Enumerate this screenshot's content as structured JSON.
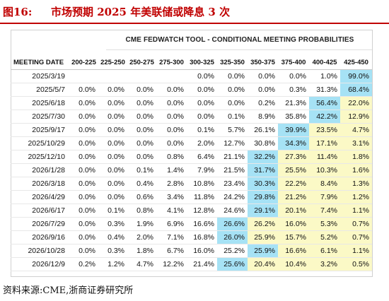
{
  "caption": {
    "number": "图16:",
    "title": "市场预期 2025 年美联储或降息 3 次"
  },
  "tool_title": "CME FEDWATCH TOOL - CONDITIONAL MEETING PROBABILITIES",
  "table": {
    "date_header": "MEETING DATE",
    "columns": [
      "200-225",
      "225-250",
      "250-275",
      "275-300",
      "300-325",
      "325-350",
      "350-375",
      "375-400",
      "400-425",
      "425-450"
    ],
    "rows": [
      {
        "date": "2025/3/19",
        "values": [
          "",
          "",
          "",
          "",
          "0.0%",
          "0.0%",
          "0.0%",
          "0.0%",
          "1.0%",
          "99.0%"
        ]
      },
      {
        "date": "2025/5/7",
        "values": [
          "0.0%",
          "0.0%",
          "0.0%",
          "0.0%",
          "0.0%",
          "0.0%",
          "0.0%",
          "0.3%",
          "31.3%",
          "68.4%"
        ]
      },
      {
        "date": "2025/6/18",
        "values": [
          "0.0%",
          "0.0%",
          "0.0%",
          "0.0%",
          "0.0%",
          "0.0%",
          "0.2%",
          "21.3%",
          "56.4%",
          "22.0%"
        ]
      },
      {
        "date": "2025/7/30",
        "values": [
          "0.0%",
          "0.0%",
          "0.0%",
          "0.0%",
          "0.0%",
          "0.1%",
          "8.9%",
          "35.8%",
          "42.2%",
          "12.9%"
        ]
      },
      {
        "date": "2025/9/17",
        "values": [
          "0.0%",
          "0.0%",
          "0.0%",
          "0.0%",
          "0.1%",
          "5.7%",
          "26.1%",
          "39.9%",
          "23.5%",
          "4.7%"
        ]
      },
      {
        "date": "2025/10/29",
        "values": [
          "0.0%",
          "0.0%",
          "0.0%",
          "0.0%",
          "2.0%",
          "12.7%",
          "30.8%",
          "34.3%",
          "17.1%",
          "3.1%"
        ]
      },
      {
        "date": "2025/12/10",
        "values": [
          "0.0%",
          "0.0%",
          "0.0%",
          "0.8%",
          "6.4%",
          "21.1%",
          "32.2%",
          "27.3%",
          "11.4%",
          "1.8%"
        ]
      },
      {
        "date": "2026/1/28",
        "values": [
          "0.0%",
          "0.0%",
          "0.1%",
          "1.4%",
          "7.9%",
          "21.5%",
          "31.7%",
          "25.5%",
          "10.3%",
          "1.6%"
        ]
      },
      {
        "date": "2026/3/18",
        "values": [
          "0.0%",
          "0.0%",
          "0.4%",
          "2.8%",
          "10.8%",
          "23.4%",
          "30.3%",
          "22.2%",
          "8.4%",
          "1.3%"
        ]
      },
      {
        "date": "2026/4/29",
        "values": [
          "0.0%",
          "0.0%",
          "0.6%",
          "3.4%",
          "11.8%",
          "24.2%",
          "29.8%",
          "21.2%",
          "7.9%",
          "1.2%"
        ]
      },
      {
        "date": "2026/6/17",
        "values": [
          "0.0%",
          "0.1%",
          "0.8%",
          "4.1%",
          "12.8%",
          "24.6%",
          "29.1%",
          "20.1%",
          "7.4%",
          "1.1%"
        ]
      },
      {
        "date": "2026/7/29",
        "values": [
          "0.0%",
          "0.3%",
          "1.9%",
          "6.9%",
          "16.6%",
          "26.6%",
          "26.2%",
          "16.0%",
          "5.3%",
          "0.7%"
        ]
      },
      {
        "date": "2026/9/16",
        "values": [
          "0.0%",
          "0.4%",
          "2.0%",
          "7.1%",
          "16.8%",
          "26.0%",
          "25.9%",
          "15.7%",
          "5.2%",
          "0.7%"
        ]
      },
      {
        "date": "2026/10/28",
        "values": [
          "0.0%",
          "0.3%",
          "1.8%",
          "6.7%",
          "16.0%",
          "25.2%",
          "25.9%",
          "16.6%",
          "6.1%",
          "1.1%"
        ]
      },
      {
        "date": "2026/12/9",
        "values": [
          "0.2%",
          "1.2%",
          "4.7%",
          "12.2%",
          "21.4%",
          "25.6%",
          "20.4%",
          "10.4%",
          "3.2%",
          "0.5%"
        ]
      }
    ],
    "highlight": {
      "cyan_color": "#a6e2f5",
      "yellow_color": "#fbf9c6",
      "modal_cell_col": [
        9,
        9,
        8,
        8,
        7,
        7,
        6,
        6,
        6,
        6,
        6,
        5,
        5,
        6,
        5
      ],
      "yellow_start_col": [
        null,
        null,
        9,
        9,
        8,
        8,
        7,
        7,
        7,
        7,
        7,
        6,
        6,
        7,
        6
      ]
    }
  },
  "source": "资料来源:CME,浙商证券研究所"
}
